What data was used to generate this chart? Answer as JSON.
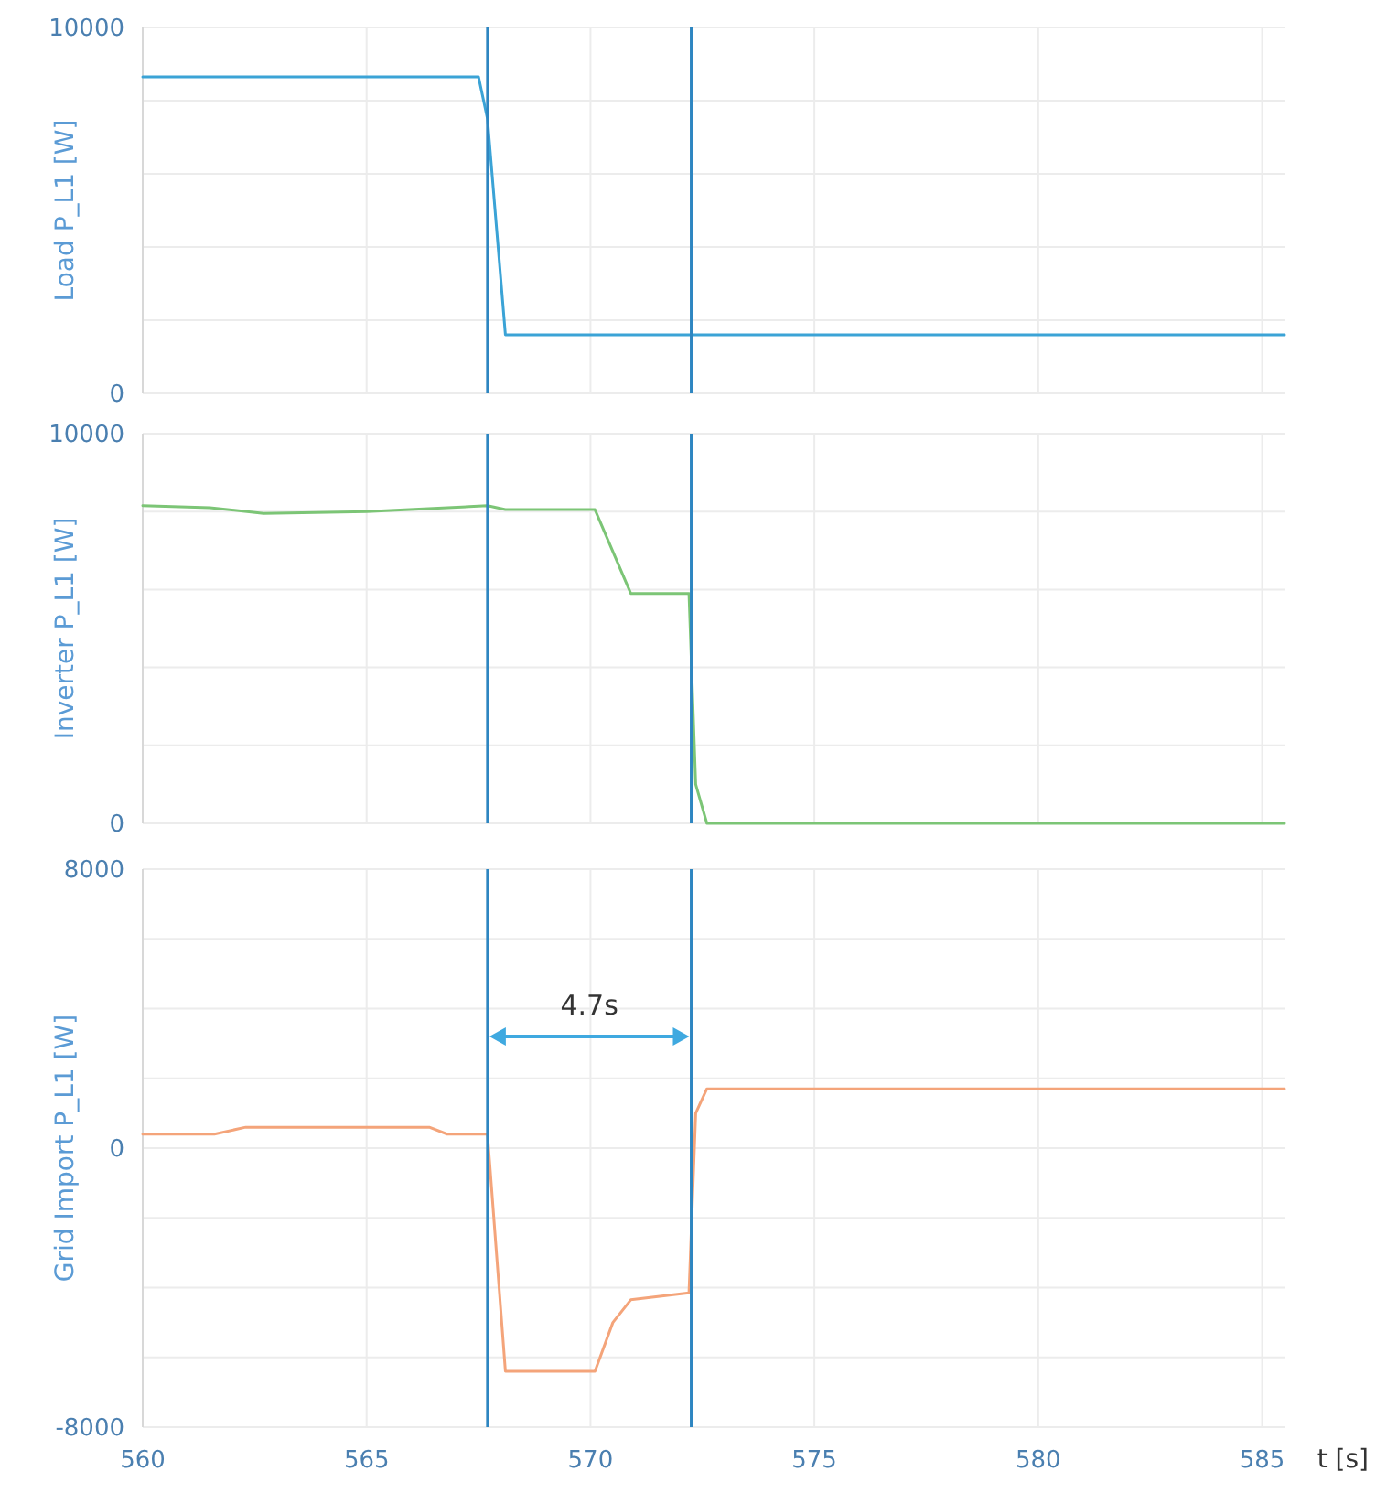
{
  "chart_data": [
    {
      "type": "line",
      "ylabel": "Load P_L1 [W]",
      "xlim": [
        560,
        585.5
      ],
      "xticks": [
        560,
        565,
        570,
        575,
        580,
        585
      ],
      "ylim": [
        0,
        10000
      ],
      "yticks": [
        0,
        {
          "value": 2000,
          "label": null
        },
        {
          "value": 4000,
          "label": null
        },
        {
          "value": 6000,
          "label": null
        },
        {
          "value": 8000,
          "label": null
        },
        10000
      ],
      "grid": true,
      "tick_labels": "y",
      "x": [
        560,
        567.5,
        567.7,
        568.1,
        572.3,
        585.5
      ],
      "series": [
        {
          "color": "#3ba3d6",
          "values": [
            8650,
            8650,
            7500,
            1600,
            1600,
            1600
          ]
        }
      ],
      "ref_lines": [
        {
          "axis": "x",
          "value": 567.7,
          "color": "#2e86c1"
        },
        {
          "axis": "x",
          "value": 572.25,
          "color": "#2e86c1"
        }
      ]
    },
    {
      "type": "line",
      "ylabel": "Inverter P_L1 [W]",
      "xlim": [
        560,
        585.5
      ],
      "xticks": [
        560,
        565,
        570,
        575,
        580,
        585
      ],
      "ylim": [
        0,
        10000
      ],
      "yticks": [
        0,
        {
          "value": 2000,
          "label": null
        },
        {
          "value": 4000,
          "label": null
        },
        {
          "value": 6000,
          "label": null
        },
        {
          "value": 8000,
          "label": null
        },
        10000
      ],
      "grid": true,
      "tick_labels": "y",
      "x": [
        560,
        561.5,
        562.7,
        565,
        567.7,
        568.1,
        570.1,
        570.9,
        572.2,
        572.35,
        572.6,
        575,
        580,
        585.5
      ],
      "series": [
        {
          "color": "#7cc576",
          "values": [
            8150,
            8100,
            7950,
            8000,
            8150,
            8050,
            8050,
            5900,
            5900,
            1000,
            0,
            0,
            0,
            0
          ]
        }
      ],
      "ref_lines": [
        {
          "axis": "x",
          "value": 567.7,
          "color": "#2e86c1"
        },
        {
          "axis": "x",
          "value": 572.25,
          "color": "#2e86c1"
        }
      ]
    },
    {
      "type": "line",
      "ylabel": "Grid Import P_L1 [W]",
      "xlabel": "t [s]",
      "xlim": [
        560,
        585.5
      ],
      "xticks": [
        560,
        565,
        570,
        575,
        580,
        585
      ],
      "ylim": [
        -8000,
        8000
      ],
      "yticks": [
        -8000,
        {
          "value": -6000,
          "label": null
        },
        {
          "value": -4000,
          "label": null
        },
        {
          "value": -2000,
          "label": null
        },
        0,
        {
          "value": 2000,
          "label": null
        },
        {
          "value": 4000,
          "label": null
        },
        {
          "value": 6000,
          "label": null
        },
        8000
      ],
      "grid": true,
      "x": [
        560,
        561.6,
        562.3,
        566.4,
        566.8,
        567.7,
        568.1,
        570.1,
        570.5,
        570.9,
        572.2,
        572.35,
        572.6,
        575,
        585.5
      ],
      "series": [
        {
          "color": "#f4a47a",
          "values": [
            400,
            400,
            600,
            600,
            400,
            400,
            -6400,
            -6400,
            -5000,
            -4350,
            -4150,
            1000,
            1700,
            1700,
            1700
          ]
        }
      ],
      "ref_lines": [
        {
          "axis": "x",
          "value": 567.7,
          "color": "#2e86c1"
        },
        {
          "axis": "x",
          "value": 572.25,
          "color": "#2e86c1"
        }
      ],
      "annotations": [
        "4.7s"
      ]
    }
  ]
}
